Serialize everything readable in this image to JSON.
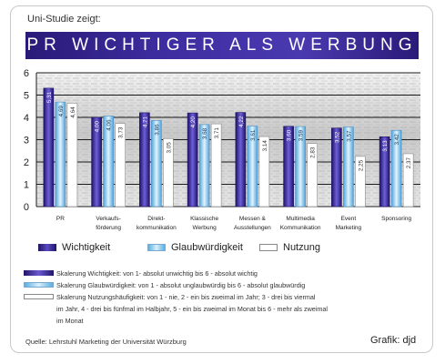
{
  "header": {
    "intro": "Uni-Studie zeigt:",
    "title": "PR WICHTIGER ALS WERBUNG"
  },
  "colors": {
    "wichtigkeit": "#3a2a9a",
    "glaubwuerdigkeit": "#8ecbef",
    "nutzung": "#ffffff",
    "banner": "#35279a"
  },
  "chart_data": {
    "type": "bar",
    "categories": [
      [
        "PR"
      ],
      [
        "Verkaufs-",
        "förderung"
      ],
      [
        "Direkt-",
        "kommunikation"
      ],
      [
        "Klassische",
        "Werbung"
      ],
      [
        "Messen &",
        "Ausstellungen"
      ],
      [
        "Multimedia",
        "Kommunikation"
      ],
      [
        "Event",
        "Marketing"
      ],
      [
        "Sponsoring"
      ]
    ],
    "series": [
      {
        "name": "Wichtigkeit",
        "values": [
          5.31,
          4.0,
          4.21,
          4.2,
          4.22,
          3.6,
          3.52,
          3.13
        ]
      },
      {
        "name": "Glaubwürdigkeit",
        "values": [
          4.69,
          4.06,
          3.86,
          3.68,
          3.61,
          3.59,
          3.57,
          3.42
        ]
      },
      {
        "name": "Nutzung",
        "values": [
          4.64,
          3.73,
          3.05,
          3.71,
          3.14,
          2.83,
          2.25,
          2.37
        ]
      }
    ],
    "value_labels": [
      [
        "5,31",
        "4,00",
        "4,21",
        "4,20",
        "4,22",
        "3,60",
        "3,52",
        "3,13"
      ],
      [
        "4,69",
        "4,06",
        "3,86",
        "3,68",
        "3,61",
        "3,59",
        "3,57",
        "3,42"
      ],
      [
        "4,64",
        "3,73",
        "3,05",
        "3,71",
        "3,14",
        "2,83",
        "2,25",
        "2,37"
      ]
    ],
    "yticks": [
      "0",
      "1",
      "2",
      "3",
      "4",
      "5",
      "6"
    ],
    "ylim": [
      0,
      6
    ],
    "grid": true
  },
  "legend": {
    "wichtigkeit": "Wichtigkeit",
    "glaubwuerdigkeit": "Glaubwürdigkeit",
    "nutzung": "Nutzung"
  },
  "scales": {
    "wichtigkeit": "Skalerung Wichtigkeit: von 1- absolut unwichtig bis 6 - absolut wichtig",
    "glaubwuerdigkeit": "Skalerung Glaubwürdigkeit: von 1 - absolut unglaubwürdig bis 6 - absolut glaubwürdig",
    "nutzung_1": "Skalerung Nutzungshäufigkeit: von 1 - nie, 2 - ein bis zweimal im Jahr; 3 - drei bis viermal",
    "nutzung_2": "im Jahr, 4 - drei bis fünfmal im Halbjahr, 5 - ein bis zweimal im Monat bis 6 - mehr als zweimal",
    "nutzung_3": "im Monat"
  },
  "footer": {
    "source": "Quelle: Lehrstuhl Marketing der Universität Würzburg",
    "credit": "Grafik: djd"
  }
}
